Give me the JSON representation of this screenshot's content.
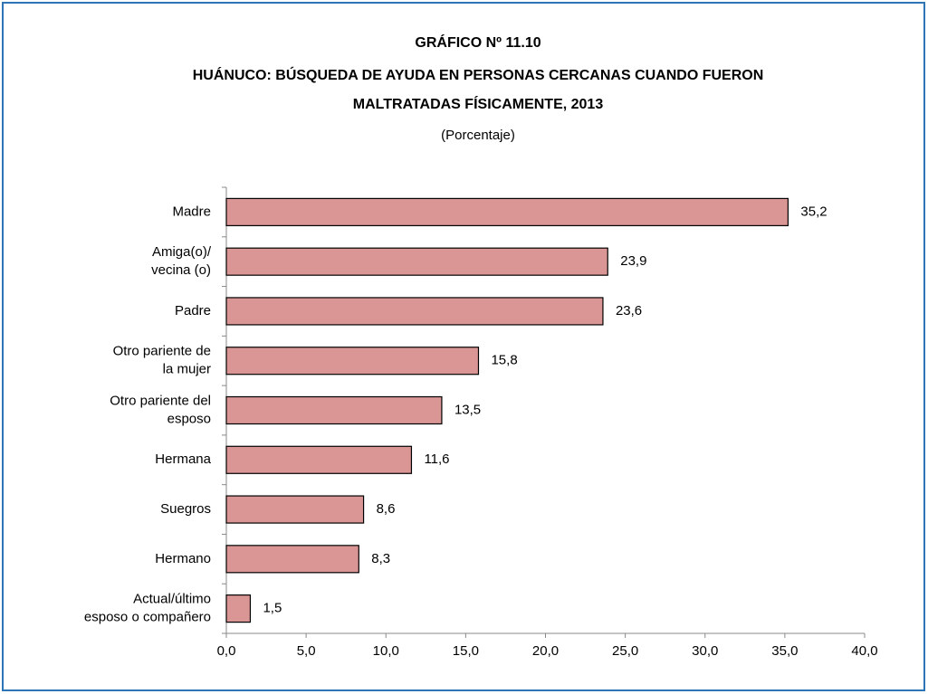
{
  "chart_data": {
    "type": "bar",
    "orientation": "horizontal",
    "title": [
      "GRÁFICO Nº 11.10",
      "HUÁNUCO:  BÚSQUEDA DE AYUDA EN PERSONAS CERCANAS CUANDO FUERON",
      "MALTRATADAS FÍSICAMENTE, 2013"
    ],
    "subtitle": "(Porcentaje)",
    "categories": [
      "Madre",
      "Amiga(o)/\nvecina (o)",
      "Padre",
      "Otro pariente de\nla mujer",
      "Otro pariente del\nesposo",
      "Hermana",
      "Suegros",
      "Hermano",
      "Actual/último\nesposo o compañero"
    ],
    "values": [
      35.2,
      23.9,
      23.6,
      15.8,
      13.5,
      11.6,
      8.6,
      8.3,
      1.5
    ],
    "value_labels": [
      "35,2",
      "23,9",
      "23,6",
      "15,8",
      "13,5",
      "11,6",
      "8,6",
      "8,3",
      "1,5"
    ],
    "color": "#d99694",
    "xlim": [
      0,
      40
    ],
    "xticks": [
      {
        "value": 0,
        "label": "0,0"
      },
      {
        "value": 5,
        "label": "5,0"
      },
      {
        "value": 10,
        "label": "10,0"
      },
      {
        "value": 15,
        "label": "15,0"
      },
      {
        "value": 20,
        "label": "20,0"
      },
      {
        "value": 25,
        "label": "25,0"
      },
      {
        "value": 30,
        "label": "30,0"
      },
      {
        "value": 35,
        "label": "35,0"
      },
      {
        "value": 40,
        "label": "40,0"
      }
    ],
    "grid": false
  }
}
